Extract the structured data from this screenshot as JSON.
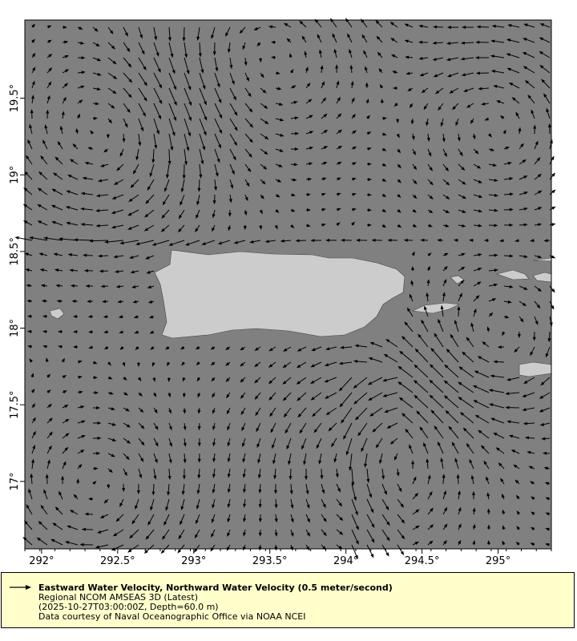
{
  "map": {
    "lon_range": [
      291.89,
      295.35
    ],
    "lat_range": [
      16.56,
      20.01
    ],
    "ocean_color": "#808080",
    "land_color": "#cccccc",
    "arrow_color": "#000000",
    "x_ticks": [
      {
        "v": 292,
        "label": "292°"
      },
      {
        "v": 292.5,
        "label": "292.5°"
      },
      {
        "v": 293,
        "label": "293°"
      },
      {
        "v": 293.5,
        "label": "293.5°"
      },
      {
        "v": 294,
        "label": "294°"
      },
      {
        "v": 294.5,
        "label": "294.5°"
      },
      {
        "v": 295,
        "label": "295°"
      }
    ],
    "y_ticks": [
      {
        "v": 17,
        "label": "17°"
      },
      {
        "v": 17.5,
        "label": "17.5°"
      },
      {
        "v": 18,
        "label": "18°"
      },
      {
        "v": 18.5,
        "label": "18.5°"
      },
      {
        "v": 19,
        "label": "19°"
      },
      {
        "v": 19.5,
        "label": "19.5°"
      }
    ]
  },
  "legend": {
    "title": "Eastward Water Velocity, Northward Water Velocity (0.5 meter/second)",
    "line1": "Regional NCOM AMSEAS 3D (Latest)",
    "line2": "(2025-10-27T03:00:00Z, Depth=60.0 m)",
    "line3": "Data courtesy of Naval Oceanographic Office via NOAA NCEI",
    "bg_color": "#ffffcc"
  }
}
